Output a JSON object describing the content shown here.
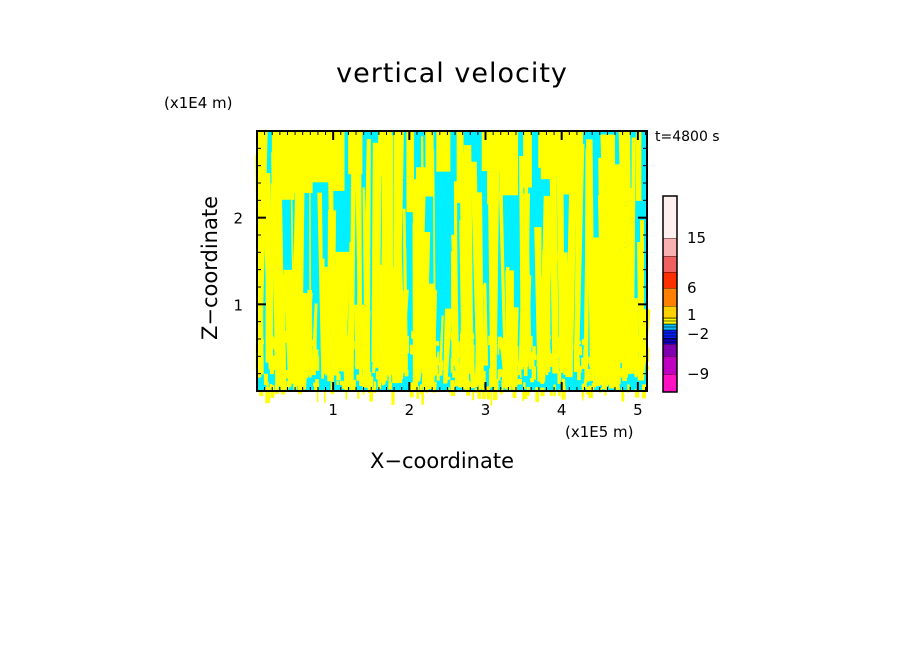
{
  "chart_data": {
    "type": "heatmap",
    "title": "vertical velocity",
    "xlabel": "X−coordinate",
    "ylabel": "Z−coordinate",
    "x_unit": "(x1E5 m)",
    "z_unit": "(x1E4 m)",
    "time_label": "t=4800 s",
    "x_ticks": [
      1,
      2,
      3,
      4,
      5
    ],
    "z_ticks": [
      1,
      2
    ],
    "xlim": [
      0,
      5.12
    ],
    "zlim": [
      0,
      3.0
    ],
    "field_colors": {
      "positive": "#ffff00",
      "negative": "#00f0ff"
    },
    "colorbar": {
      "labels": [
        "15",
        "6",
        "1",
        "−2",
        "−9"
      ],
      "levels": [
        -9,
        -2,
        1,
        6,
        15
      ],
      "colors": [
        "#ff10c0",
        "#c000c0",
        "#8000b0",
        "#1000c0",
        "#0020ff",
        "#00c0ff",
        "#ffff00",
        "#ffd000",
        "#ff8000",
        "#ff3000",
        "#f06060",
        "#f8b0b0",
        "#fff0f0"
      ]
    }
  }
}
